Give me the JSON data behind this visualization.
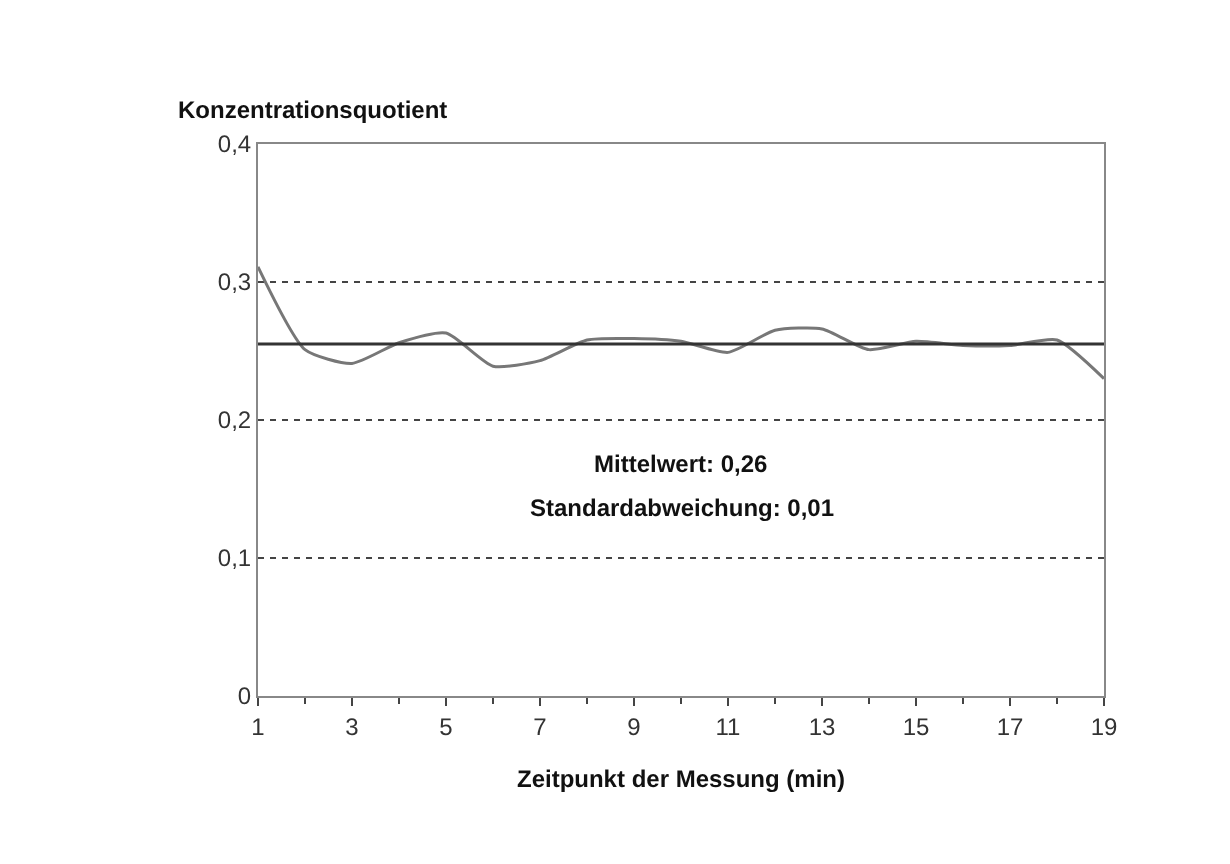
{
  "chart_data": {
    "type": "line",
    "ylabel": "Konzentrationsquotient",
    "xlabel": "Zeitpunkt der Messung (min)",
    "x": [
      1,
      2,
      3,
      4,
      5,
      6,
      7,
      8,
      9,
      10,
      11,
      12,
      13,
      14,
      15,
      16,
      17,
      18,
      19
    ],
    "series": [
      {
        "color": "#777777",
        "values": [
          0.311,
          0.251,
          0.241,
          0.256,
          0.263,
          0.239,
          0.243,
          0.258,
          0.259,
          0.257,
          0.249,
          0.265,
          0.266,
          0.251,
          0.257,
          0.254,
          0.254,
          0.258,
          0.23
        ]
      }
    ],
    "xlim": [
      1,
      19
    ],
    "xticks": [
      1,
      3,
      5,
      7,
      9,
      11,
      13,
      15,
      17,
      19
    ],
    "ylim": [
      0,
      0.4
    ],
    "yticks": [
      {
        "value": 0,
        "label": "0"
      },
      {
        "value": 0.1,
        "label": "0,1"
      },
      {
        "value": 0.2,
        "label": "0,2"
      },
      {
        "value": 0.3,
        "label": "0,3"
      },
      {
        "value": 0.4,
        "label": "0,4"
      }
    ],
    "ref_lines": [
      {
        "axis": "y",
        "value": 0.255,
        "color": "#333333",
        "line_style": "solid"
      }
    ],
    "annotations": [
      "Mittelwert: 0,26",
      "Standardabweichung: 0,01"
    ],
    "grid": "y",
    "line_style": "solid",
    "marker": "none"
  }
}
